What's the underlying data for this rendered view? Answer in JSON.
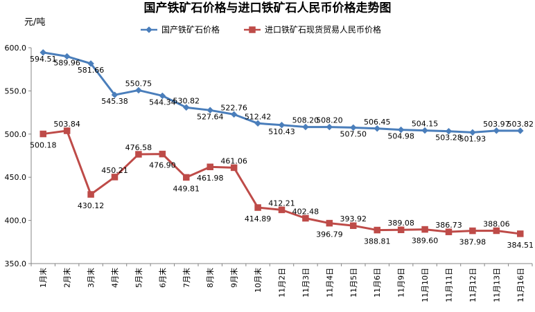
{
  "chart_data": {
    "type": "line",
    "title": "国产铁矿石价格与进口铁矿石人民币价格走势图",
    "ylabel": "元/吨",
    "xlabel": "",
    "ylim": [
      350,
      600
    ],
    "yticks": [
      "350.0",
      "400.0",
      "450.0",
      "500.0",
      "550.0",
      "600.0"
    ],
    "grid": false,
    "legend": "top",
    "categories": [
      "1月末",
      "2月末",
      "3月末",
      "4月末",
      "5月末",
      "6月末",
      "7月末",
      "8月末",
      "9月末",
      "10月末",
      "11月2日",
      "11月3日",
      "11月4日",
      "11月5日",
      "11月6日",
      "11月9日",
      "11月10日",
      "11月11日",
      "11月12日",
      "11月13日",
      "11月16日"
    ],
    "series": [
      {
        "name": "国产铁矿石价格",
        "color": "#4a7ebb",
        "marker": "diamond",
        "values": [
          594.51,
          589.96,
          581.66,
          545.38,
          550.75,
          544.34,
          530.82,
          527.64,
          522.76,
          512.42,
          510.43,
          508.2,
          508.2,
          507.5,
          506.45,
          504.98,
          504.15,
          503.28,
          501.93,
          503.97,
          503.82
        ],
        "labels": [
          "594.51",
          "589.96",
          "581.66",
          "545.38",
          "550.75",
          "544.34",
          "530.82",
          "527.64",
          "522.76",
          "512.42",
          "510.43",
          "508.20",
          "508.20",
          "507.50",
          "506.45",
          "504.98",
          "504.15",
          "503.28",
          "501.93",
          "503.97",
          "503.82"
        ]
      },
      {
        "name": "进口铁矿石现货贸易人民币价格",
        "color": "#be4b48",
        "marker": "square",
        "values": [
          500.18,
          503.84,
          430.12,
          450.21,
          476.58,
          476.9,
          449.81,
          461.98,
          461.06,
          414.89,
          412.21,
          402.48,
          396.79,
          393.92,
          388.81,
          389.08,
          389.6,
          386.73,
          387.98,
          388.06,
          384.51
        ],
        "labels": [
          "500.18",
          "503.84",
          "430.12",
          "450.21",
          "476.58",
          "476.90",
          "449.81",
          "461.98",
          "461.06",
          "414.89",
          "412.21",
          "402.48",
          "396.79",
          "393.92",
          "388.81",
          "389.08",
          "389.60",
          "386.73",
          "387.98",
          "388.06",
          "384.51"
        ]
      }
    ]
  }
}
